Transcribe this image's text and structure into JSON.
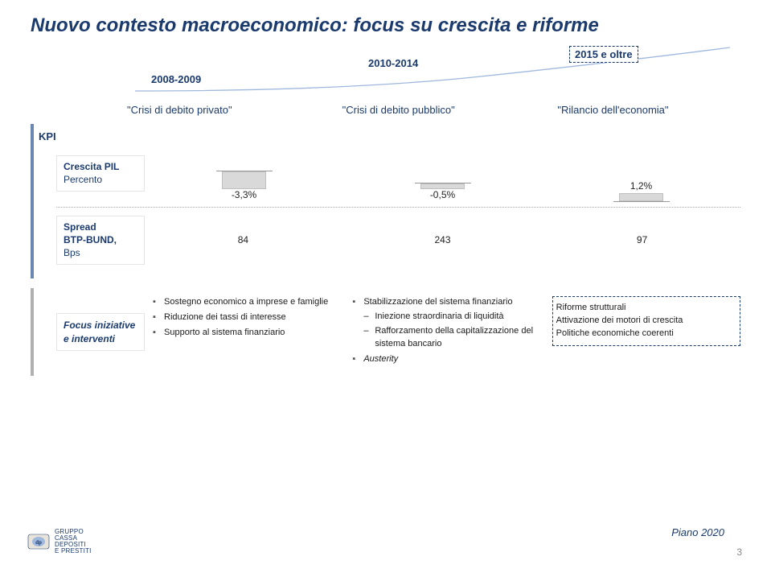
{
  "title": "Nuovo contesto macroeconomico: focus su crescita e riforme",
  "timeline": {
    "a": "2008-2009",
    "b": "2010-2014",
    "c": "2015 e oltre"
  },
  "quotes": {
    "a": "\"Crisi di debito privato\"",
    "b": "\"Crisi di debito pubblico\"",
    "c": "\"Rilancio dell'economia\""
  },
  "kpi_label": "KPI",
  "crescita": {
    "label_bold": "Crescita PIL",
    "label_sub": "Percento",
    "col1": {
      "value": "-3,3%",
      "height": 22,
      "dir": "down"
    },
    "col2": {
      "value": "-0,5%",
      "height": 7,
      "dir": "down"
    },
    "col3": {
      "value": "1,2%",
      "height": 10,
      "dir": "up"
    }
  },
  "spread": {
    "label_bold1": "Spread",
    "label_bold2": "BTP-BUND,",
    "label_sub": "Bps",
    "col1": "84",
    "col2": "243",
    "col3": "97"
  },
  "focus_label": "Focus iniziative e interventi",
  "focus": {
    "col1": [
      "Sostegno economico a imprese e famiglie",
      "Riduzione dei tassi di interesse",
      "Supporto al sistema finanziario"
    ],
    "col2_top": "Stabilizzazione del sistema finanziario",
    "col2_sub": [
      "Iniezione straordinaria di liquidità",
      "Rafforzamento della capitalizzazione del sistema bancario"
    ],
    "col2_last": "Austerity",
    "col3": [
      "Riforme strutturali",
      "Attivazione dei motori di crescita",
      "Politiche economiche coerenti"
    ]
  },
  "logo_text": "GRUPPO\nCASSA\nDEPOSITI\nE PRESTITI",
  "piano": "Piano 2020",
  "pagenum": "3",
  "colors": {
    "brand": "#1a3a6e",
    "bar": "#d9d9d9",
    "curve": "#9fb8dd"
  }
}
